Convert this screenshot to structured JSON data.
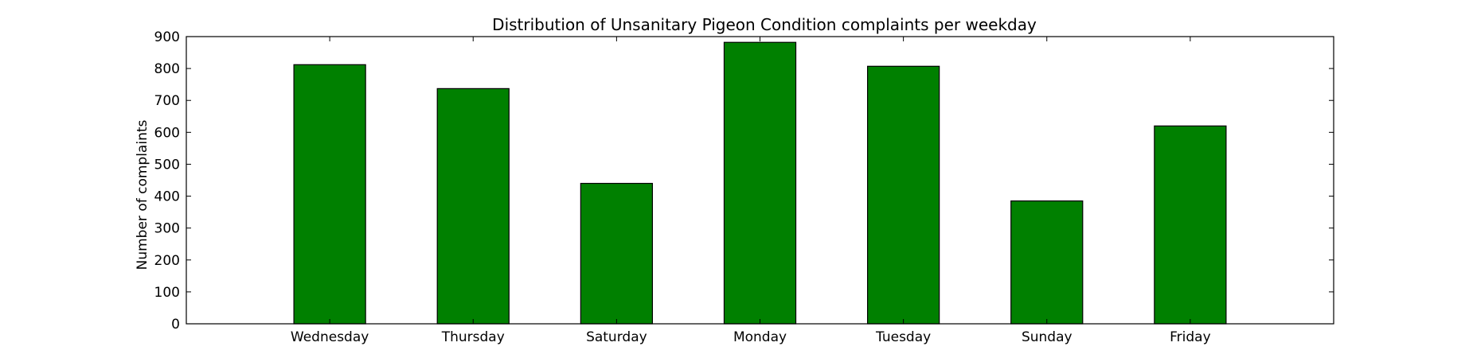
{
  "chart_data": {
    "type": "bar",
    "title": "Distribution of  Unsanitary Pigeon Condition complaints per weekday",
    "xlabel": "",
    "ylabel": "Number of complaints",
    "categories": [
      "Wednesday",
      "Thursday",
      "Saturday",
      "Monday",
      "Tuesday",
      "Sunday",
      "Friday"
    ],
    "values": [
      812,
      737,
      440,
      882,
      807,
      385,
      620
    ],
    "ylim": [
      0,
      900
    ],
    "yticks": [
      0,
      100,
      200,
      300,
      400,
      500,
      600,
      700,
      800,
      900
    ],
    "bar_color": "#008000",
    "grid": false,
    "legend": "none"
  }
}
